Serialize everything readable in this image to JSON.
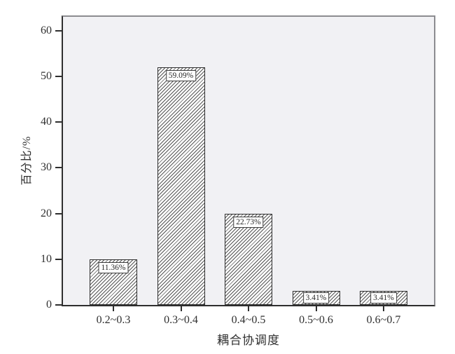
{
  "chart_data": {
    "type": "bar",
    "title": "",
    "categories": [
      "0.2~0.3",
      "0.3~0.4",
      "0.4~0.5",
      "0.5~0.6",
      "0.6~0.7"
    ],
    "values": [
      10,
      52,
      20,
      3,
      3
    ],
    "bar_labels": [
      "11.36%",
      "59.09%",
      "22.73%",
      "3.41%",
      "3.41%"
    ],
    "xlabel": "耦合协调度",
    "ylabel": "百分比/%",
    "ylim": [
      0,
      63
    ],
    "yticks": [
      0,
      10,
      20,
      30,
      40,
      50,
      60
    ],
    "grid": false,
    "legend": "none",
    "hatch": "forward-diagonal",
    "colors": {
      "plot_bg": "#f1f1f4",
      "frame": "#8c8c90",
      "axis": "#2e2e2e",
      "bar_fill": "#ffffff",
      "hatch_line": "#555555",
      "bar_edge": "#2e2e2e",
      "label_box_bg": "#fefefe",
      "label_box_border": "#3c3c3c",
      "text": "#303030"
    }
  }
}
